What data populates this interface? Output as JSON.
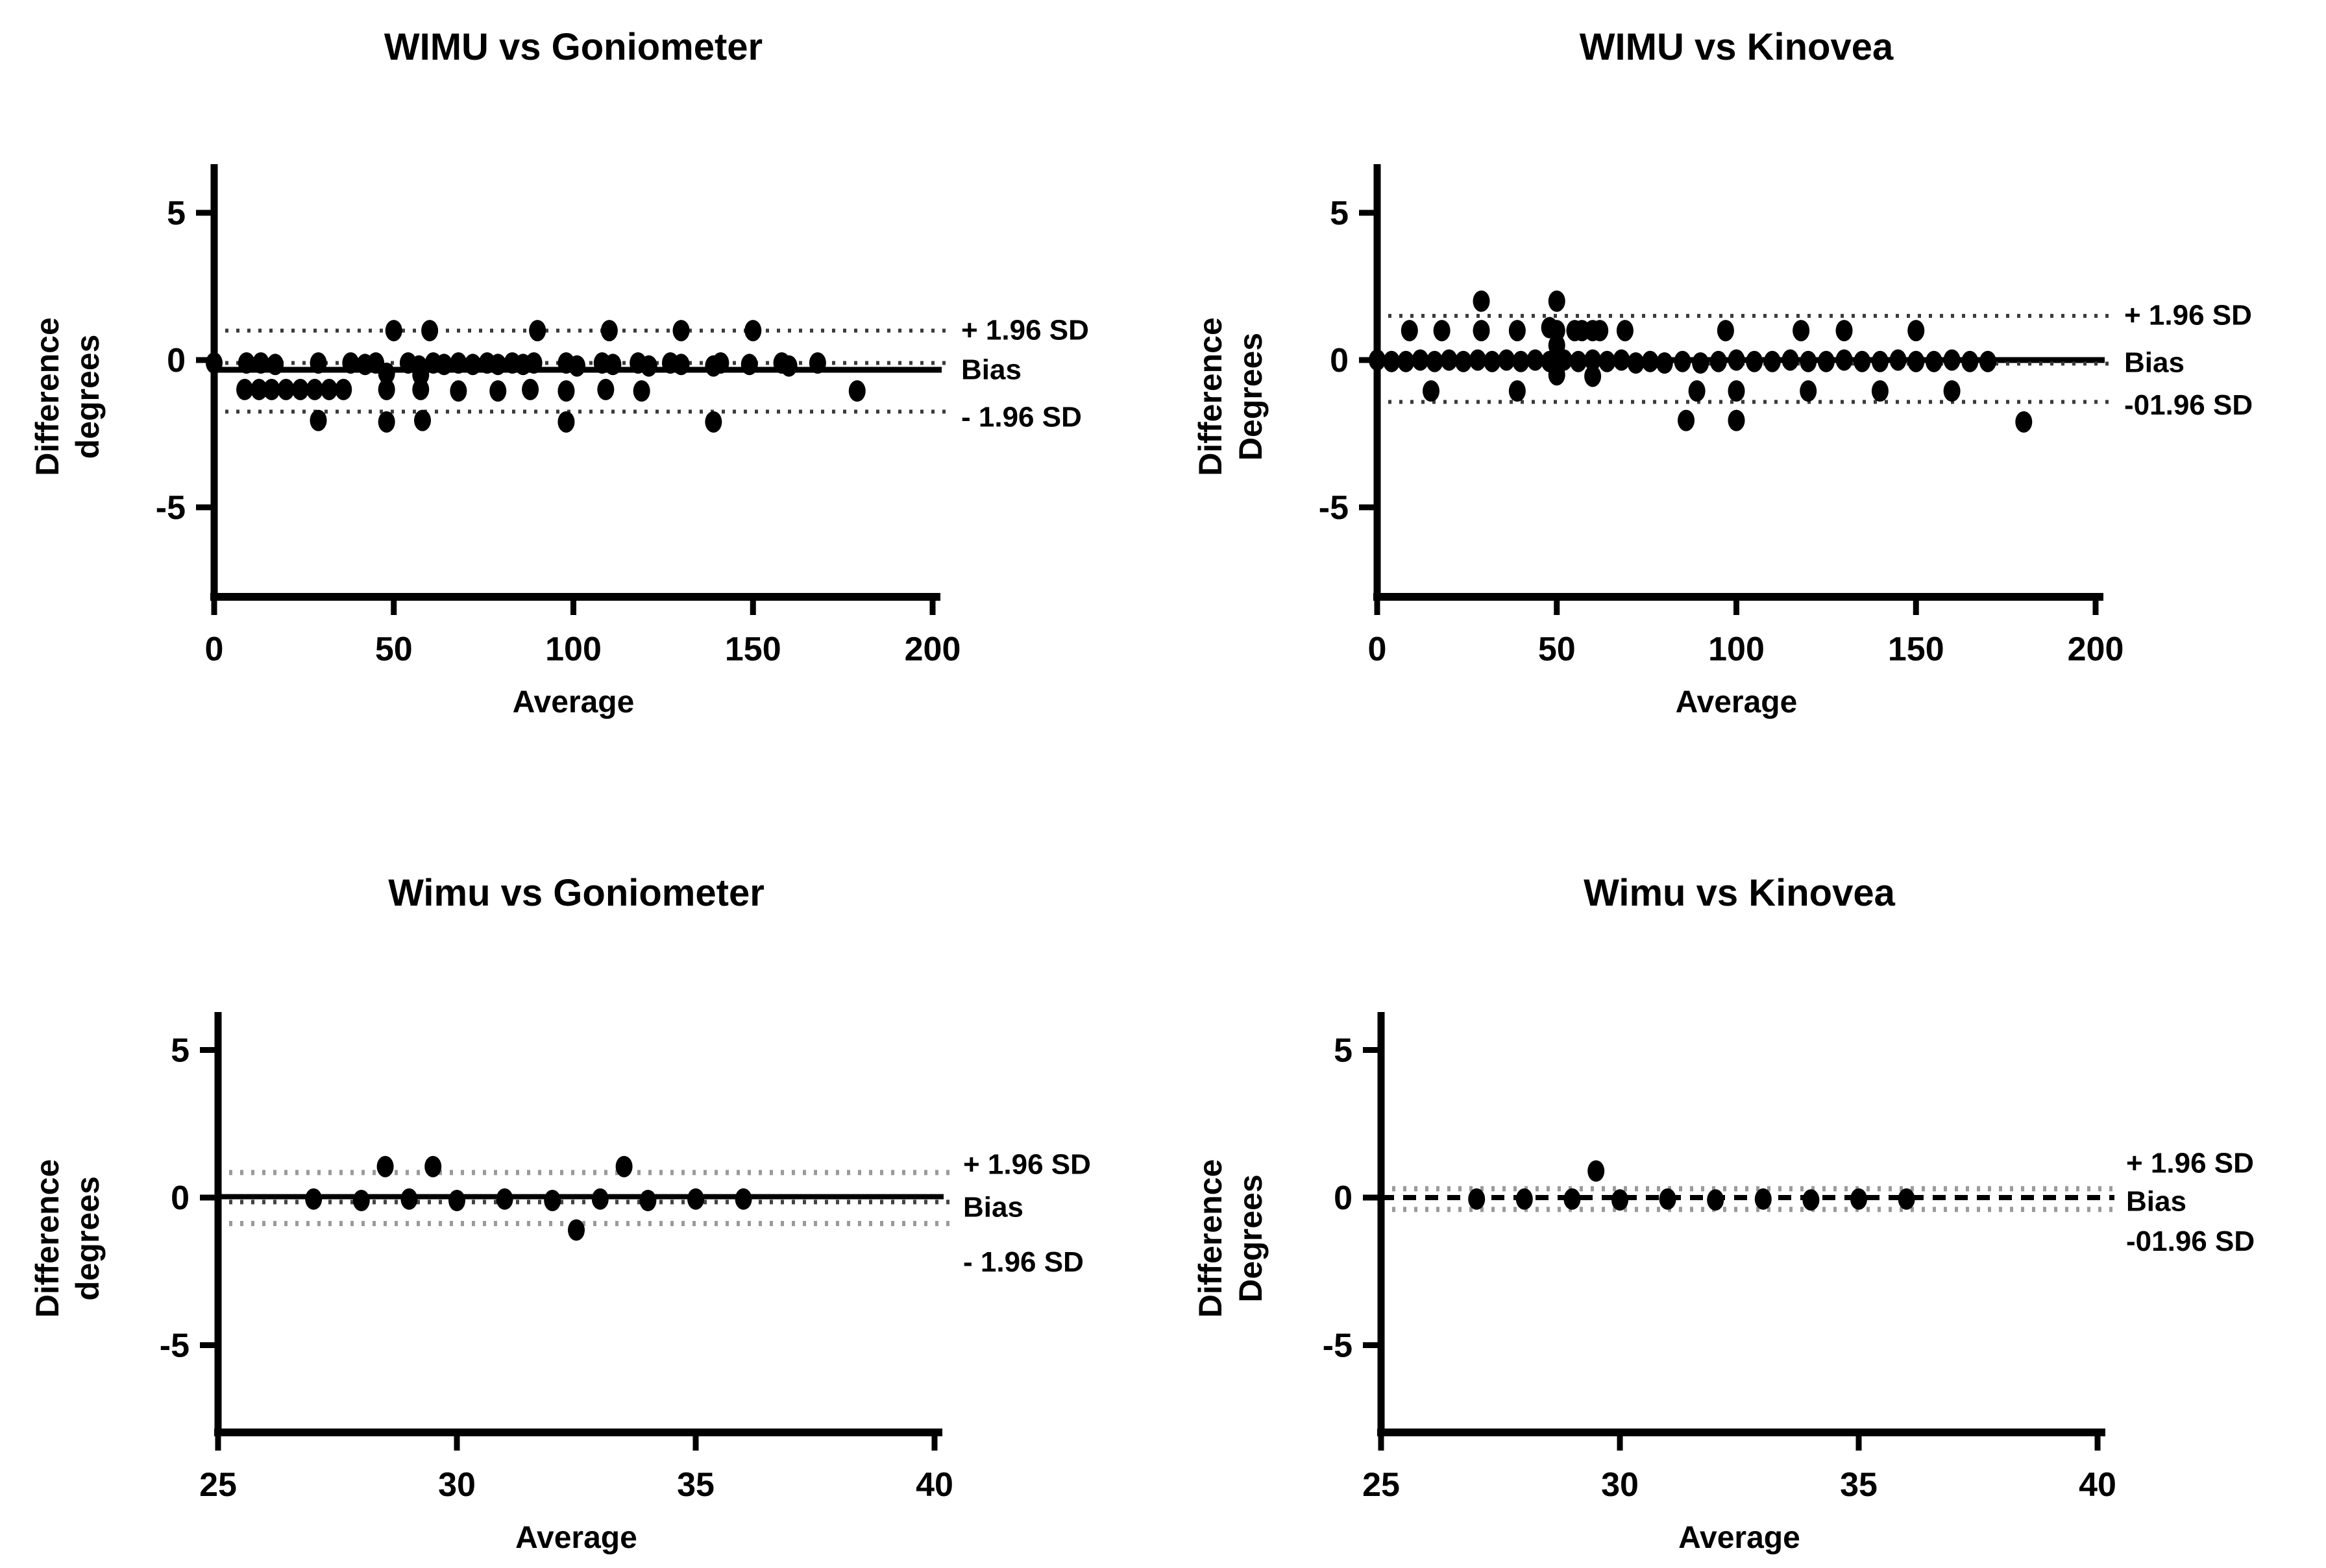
{
  "figure": {
    "background": "#ffffff",
    "ink_color": "#000000",
    "loa_dark_dotted_color": "#3a3a3a",
    "loa_gray_dotted_color": "#9a9a9a",
    "description": "Four Bland-Altman agreement plots arranged in a 2x2 grid"
  },
  "chart_data": [
    {
      "type": "scatter",
      "position": "top-left",
      "title": "WIMU vs Goniometer",
      "xlabel": "Average",
      "ylabel": [
        "Difference",
        "degrees"
      ],
      "xlim": [
        0,
        200
      ],
      "ylim": [
        -8,
        7
      ],
      "x_ticks": [
        0,
        50,
        100,
        150,
        200
      ],
      "y_ticks": [
        5,
        0,
        -5
      ],
      "grid": false,
      "legend": false,
      "marker_color": "#000000",
      "lines": [
        {
          "name": "upper-loa",
          "y": 1.0,
          "style": "dotted",
          "color": "#3a3a3a",
          "width": 6
        },
        {
          "name": "bias-dotted",
          "y": -0.1,
          "style": "dotted",
          "color": "#3a3a3a",
          "width": 6
        },
        {
          "name": "bias",
          "y": -0.33,
          "style": "solid",
          "color": "#000000",
          "width": 9
        },
        {
          "name": "lower-loa",
          "y": -1.75,
          "style": "dotted",
          "color": "#3a3a3a",
          "width": 6
        }
      ],
      "annotations": [
        {
          "name": "upper-loa",
          "label": "+ 1.96 SD",
          "y": 1.05
        },
        {
          "name": "bias",
          "label": "Bias",
          "y": -0.3
        },
        {
          "name": "lower-loa",
          "label": "- 1.96 SD",
          "y": -1.9
        }
      ],
      "points": [
        [
          50,
          1
        ],
        [
          60,
          1
        ],
        [
          90,
          1
        ],
        [
          110,
          1
        ],
        [
          130,
          1
        ],
        [
          150,
          1
        ],
        [
          0,
          -0.1
        ],
        [
          9,
          -0.1
        ],
        [
          13,
          -0.1
        ],
        [
          17,
          -0.15
        ],
        [
          29,
          -0.1
        ],
        [
          38,
          -0.1
        ],
        [
          42,
          -0.15
        ],
        [
          45,
          -0.1
        ],
        [
          54,
          -0.1
        ],
        [
          57,
          -0.2
        ],
        [
          61,
          -0.1
        ],
        [
          64,
          -0.15
        ],
        [
          68,
          -0.1
        ],
        [
          72,
          -0.15
        ],
        [
          76,
          -0.1
        ],
        [
          79,
          -0.15
        ],
        [
          83,
          -0.1
        ],
        [
          86,
          -0.15
        ],
        [
          89,
          -0.1
        ],
        [
          98,
          -0.1
        ],
        [
          101,
          -0.2
        ],
        [
          108,
          -0.1
        ],
        [
          111,
          -0.15
        ],
        [
          118,
          -0.1
        ],
        [
          121,
          -0.2
        ],
        [
          127,
          -0.1
        ],
        [
          130,
          -0.15
        ],
        [
          139,
          -0.2
        ],
        [
          141,
          -0.1
        ],
        [
          149,
          -0.15
        ],
        [
          158,
          -0.1
        ],
        [
          160,
          -0.2
        ],
        [
          168,
          -0.1
        ],
        [
          48,
          -0.45
        ],
        [
          57.5,
          -0.5
        ],
        [
          8.5,
          -1
        ],
        [
          12.5,
          -1
        ],
        [
          16,
          -1
        ],
        [
          20,
          -1
        ],
        [
          24,
          -1
        ],
        [
          28,
          -1
        ],
        [
          32,
          -1
        ],
        [
          36,
          -1
        ],
        [
          48,
          -1
        ],
        [
          57.5,
          -1
        ],
        [
          68,
          -1.05
        ],
        [
          79,
          -1.05
        ],
        [
          88,
          -1
        ],
        [
          98,
          -1.05
        ],
        [
          109,
          -1
        ],
        [
          119,
          -1.05
        ],
        [
          179,
          -1.05
        ],
        [
          29,
          -2.05
        ],
        [
          48,
          -2.1
        ],
        [
          58,
          -2.05
        ],
        [
          98,
          -2.1
        ],
        [
          139,
          -2.1
        ]
      ]
    },
    {
      "type": "scatter",
      "position": "top-right",
      "title": "WIMU vs Kinovea",
      "xlabel": "Average",
      "ylabel": [
        "Difference",
        "Degrees"
      ],
      "xlim": [
        0,
        200
      ],
      "ylim": [
        -8,
        7
      ],
      "x_ticks": [
        0,
        50,
        100,
        150,
        200
      ],
      "y_ticks": [
        5,
        0,
        -5
      ],
      "grid": false,
      "legend": false,
      "marker_color": "#000000",
      "lines": [
        {
          "name": "upper-loa",
          "y": 1.5,
          "style": "dotted",
          "color": "#3a3a3a",
          "width": 6
        },
        {
          "name": "bias",
          "y": 0.0,
          "style": "solid",
          "color": "#000000",
          "width": 9
        },
        {
          "name": "bias-dotted",
          "y": -0.12,
          "style": "dotted",
          "color": "#3a3a3a",
          "width": 6
        },
        {
          "name": "lower-loa",
          "y": -1.42,
          "style": "dotted",
          "color": "#3a3a3a",
          "width": 6
        }
      ],
      "annotations": [
        {
          "name": "upper-loa",
          "label": "+ 1.96 SD",
          "y": 1.55
        },
        {
          "name": "bias",
          "label": "Bias",
          "y": -0.05
        },
        {
          "name": "lower-loa",
          "label": "-01.96 SD",
          "y": -1.5
        }
      ],
      "points": [
        [
          29,
          2
        ],
        [
          50,
          2
        ],
        [
          9,
          1
        ],
        [
          18,
          1
        ],
        [
          29,
          1
        ],
        [
          39,
          1
        ],
        [
          48,
          1.1
        ],
        [
          50,
          1
        ],
        [
          55,
          1
        ],
        [
          57,
          1
        ],
        [
          60,
          1
        ],
        [
          62,
          1
        ],
        [
          69,
          1
        ],
        [
          97,
          1
        ],
        [
          118,
          1
        ],
        [
          130,
          1
        ],
        [
          150,
          1
        ],
        [
          0,
          0
        ],
        [
          4,
          -0.05
        ],
        [
          8,
          -0.05
        ],
        [
          12,
          0
        ],
        [
          16,
          -0.05
        ],
        [
          20,
          0
        ],
        [
          24,
          -0.05
        ],
        [
          28,
          0
        ],
        [
          32,
          -0.05
        ],
        [
          36,
          0
        ],
        [
          40,
          -0.05
        ],
        [
          44,
          0
        ],
        [
          48,
          -0.05
        ],
        [
          50,
          0.5
        ],
        [
          52,
          0
        ],
        [
          56,
          -0.05
        ],
        [
          60,
          0
        ],
        [
          64,
          -0.05
        ],
        [
          68,
          0
        ],
        [
          72,
          -0.1
        ],
        [
          76,
          -0.05
        ],
        [
          80,
          -0.1
        ],
        [
          85,
          -0.05
        ],
        [
          90,
          -0.1
        ],
        [
          95,
          -0.05
        ],
        [
          100,
          0
        ],
        [
          105,
          -0.05
        ],
        [
          110,
          -0.05
        ],
        [
          115,
          0
        ],
        [
          120,
          -0.05
        ],
        [
          125,
          -0.05
        ],
        [
          130,
          0
        ],
        [
          135,
          -0.05
        ],
        [
          140,
          -0.05
        ],
        [
          145,
          0
        ],
        [
          150,
          -0.05
        ],
        [
          155,
          -0.05
        ],
        [
          160,
          0
        ],
        [
          165,
          -0.05
        ],
        [
          170,
          -0.05
        ],
        [
          50,
          -0.5
        ],
        [
          60,
          -0.55
        ],
        [
          15,
          -1.05
        ],
        [
          39,
          -1.05
        ],
        [
          89,
          -1.05
        ],
        [
          100,
          -1.05
        ],
        [
          120,
          -1.05
        ],
        [
          140,
          -1.05
        ],
        [
          160,
          -1.05
        ],
        [
          86,
          -2.05
        ],
        [
          100,
          -2.05
        ],
        [
          180,
          -2.1
        ]
      ]
    },
    {
      "type": "scatter",
      "position": "bottom-left",
      "title": "Wimu vs Goniometer",
      "xlabel": "Average",
      "ylabel": [
        "Difference",
        "degrees"
      ],
      "xlim": [
        25,
        40
      ],
      "ylim": [
        -8,
        7
      ],
      "x_ticks": [
        25,
        30,
        35,
        40
      ],
      "y_ticks": [
        5,
        0,
        -5
      ],
      "grid": false,
      "legend": false,
      "marker_color": "#000000",
      "lines": [
        {
          "name": "upper-loa",
          "y": 0.85,
          "style": "dotted",
          "color": "#9a9a9a",
          "width": 8
        },
        {
          "name": "bias",
          "y": 0.03,
          "style": "solid",
          "color": "#000000",
          "width": 8
        },
        {
          "name": "bias-dotted",
          "y": -0.15,
          "style": "dotted",
          "color": "#444444",
          "width": 7
        },
        {
          "name": "lower-loa",
          "y": -0.88,
          "style": "dotted",
          "color": "#9a9a9a",
          "width": 8
        }
      ],
      "annotations": [
        {
          "name": "upper-loa",
          "label": "+ 1.96 SD",
          "y": 1.15
        },
        {
          "name": "bias",
          "label": "Bias",
          "y": -0.3
        },
        {
          "name": "lower-loa",
          "label": "- 1.96 SD",
          "y": -2.15
        }
      ],
      "points": [
        [
          28.5,
          1.05
        ],
        [
          29.5,
          1.05
        ],
        [
          33.5,
          1.05
        ],
        [
          27,
          -0.05
        ],
        [
          28,
          -0.1
        ],
        [
          29,
          -0.05
        ],
        [
          30,
          -0.1
        ],
        [
          31,
          -0.05
        ],
        [
          32,
          -0.1
        ],
        [
          33,
          -0.05
        ],
        [
          34,
          -0.1
        ],
        [
          35,
          -0.05
        ],
        [
          36,
          -0.05
        ],
        [
          32.5,
          -1.1
        ]
      ]
    },
    {
      "type": "scatter",
      "position": "bottom-right",
      "title": "Wimu vs Kinovea",
      "xlabel": "Average",
      "ylabel": [
        "Difference",
        "Degrees"
      ],
      "xlim": [
        25,
        40
      ],
      "ylim": [
        -8,
        7
      ],
      "x_ticks": [
        25,
        30,
        35,
        40
      ],
      "y_ticks": [
        5,
        0,
        -5
      ],
      "grid": false,
      "legend": false,
      "marker_color": "#000000",
      "lines": [
        {
          "name": "upper-loa",
          "y": 0.3,
          "style": "dotted",
          "color": "#9a9a9a",
          "width": 8
        },
        {
          "name": "bias",
          "y": 0.0,
          "style": "dashed",
          "color": "#000000",
          "width": 8
        },
        {
          "name": "lower-loa",
          "y": -0.4,
          "style": "dotted",
          "color": "#9a9a9a",
          "width": 8
        }
      ],
      "annotations": [
        {
          "name": "upper-loa",
          "label": "+ 1.96 SD",
          "y": 1.2
        },
        {
          "name": "bias",
          "label": "Bias",
          "y": -0.1
        },
        {
          "name": "lower-loa",
          "label": "-01.96 SD",
          "y": -1.45
        }
      ],
      "points": [
        [
          29.5,
          0.9
        ],
        [
          27,
          -0.05
        ],
        [
          28,
          -0.05
        ],
        [
          29,
          -0.05
        ],
        [
          30,
          -0.08
        ],
        [
          31,
          -0.05
        ],
        [
          32,
          -0.08
        ],
        [
          33,
          -0.05
        ],
        [
          34,
          -0.08
        ],
        [
          35,
          -0.05
        ],
        [
          36,
          -0.05
        ]
      ]
    }
  ]
}
